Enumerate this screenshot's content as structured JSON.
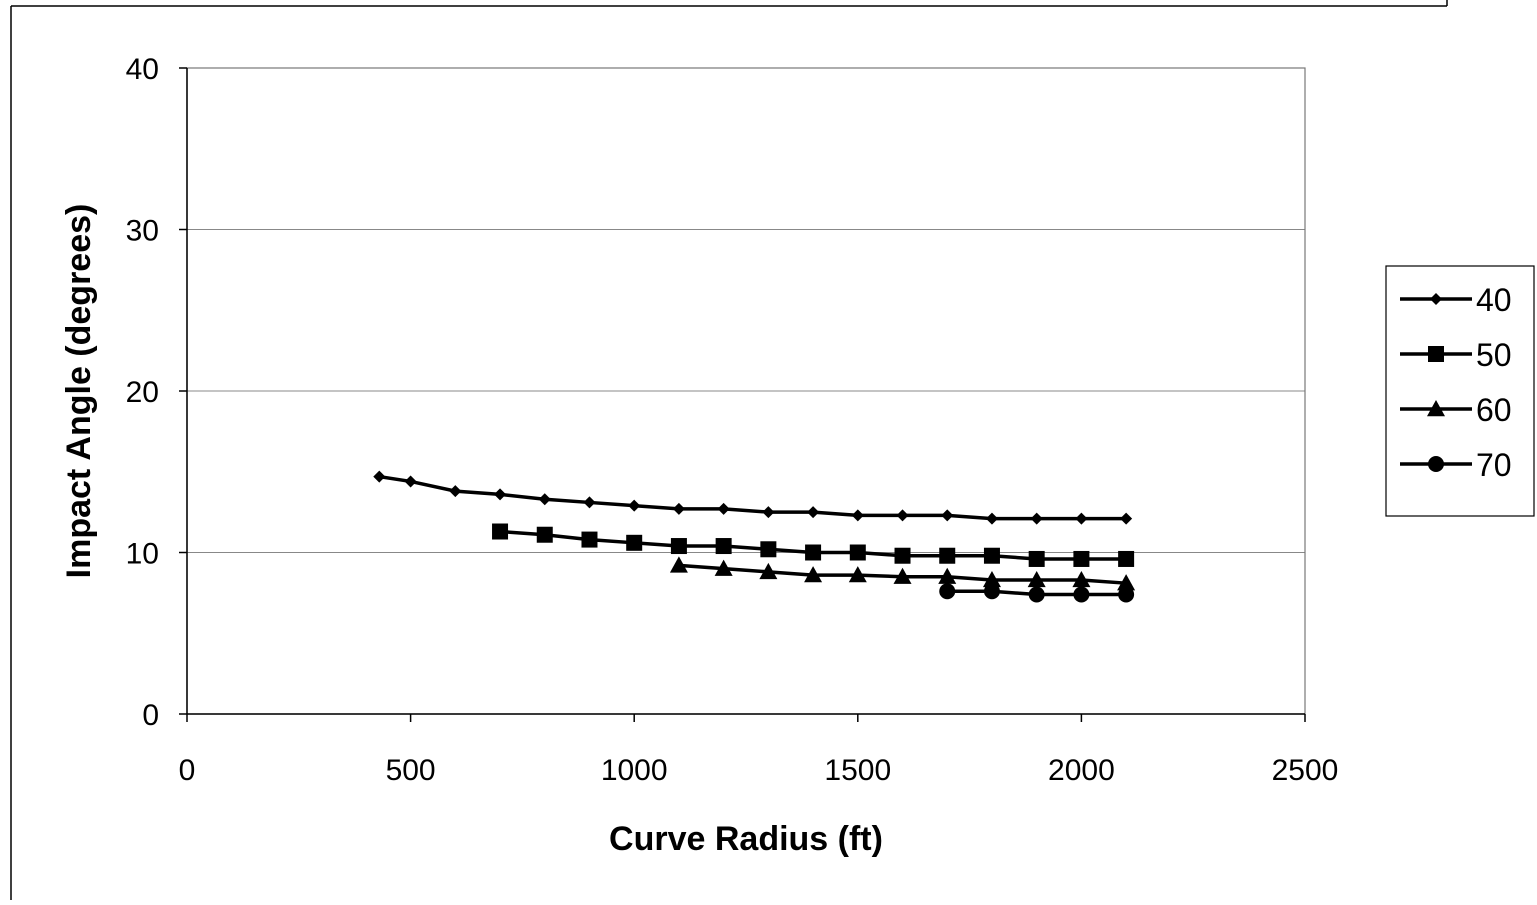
{
  "chart_data": {
    "type": "line",
    "title": "",
    "xlabel": "Curve Radius (ft)",
    "ylabel": "Impact Angle (degrees)",
    "xlim": [
      0,
      2500
    ],
    "ylim": [
      0,
      40
    ],
    "xticks": [
      "0",
      "500",
      "1000",
      "1500",
      "2000",
      "2500"
    ],
    "yticks": [
      "0",
      "10",
      "20",
      "30",
      "40"
    ],
    "grid": "horizontal",
    "legend_position": "right",
    "series": [
      {
        "name": "40",
        "marker": "diamond",
        "color": "#000000",
        "x": [
          430,
          500,
          600,
          700,
          800,
          900,
          1000,
          1100,
          1200,
          1300,
          1400,
          1500,
          1600,
          1700,
          1800,
          1900,
          2000,
          2100
        ],
        "y": [
          14.7,
          14.4,
          13.8,
          13.6,
          13.3,
          13.1,
          12.9,
          12.7,
          12.7,
          12.5,
          12.5,
          12.3,
          12.3,
          12.3,
          12.1,
          12.1,
          12.1,
          12.1
        ]
      },
      {
        "name": "50",
        "marker": "square",
        "color": "#000000",
        "x": [
          700,
          800,
          900,
          1000,
          1100,
          1200,
          1300,
          1400,
          1500,
          1600,
          1700,
          1800,
          1900,
          2000,
          2100
        ],
        "y": [
          11.3,
          11.1,
          10.8,
          10.6,
          10.4,
          10.4,
          10.2,
          10.0,
          10.0,
          9.8,
          9.8,
          9.8,
          9.6,
          9.6,
          9.6
        ]
      },
      {
        "name": "60",
        "marker": "triangle",
        "color": "#000000",
        "x": [
          1100,
          1200,
          1300,
          1400,
          1500,
          1600,
          1700,
          1800,
          1900,
          2000,
          2100
        ],
        "y": [
          9.2,
          9.0,
          8.8,
          8.6,
          8.6,
          8.5,
          8.5,
          8.3,
          8.3,
          8.3,
          8.1
        ]
      },
      {
        "name": "70",
        "marker": "circle",
        "color": "#000000",
        "x": [
          1700,
          1800,
          1900,
          2000,
          2100
        ],
        "y": [
          7.6,
          7.6,
          7.4,
          7.4,
          7.4
        ]
      }
    ]
  }
}
